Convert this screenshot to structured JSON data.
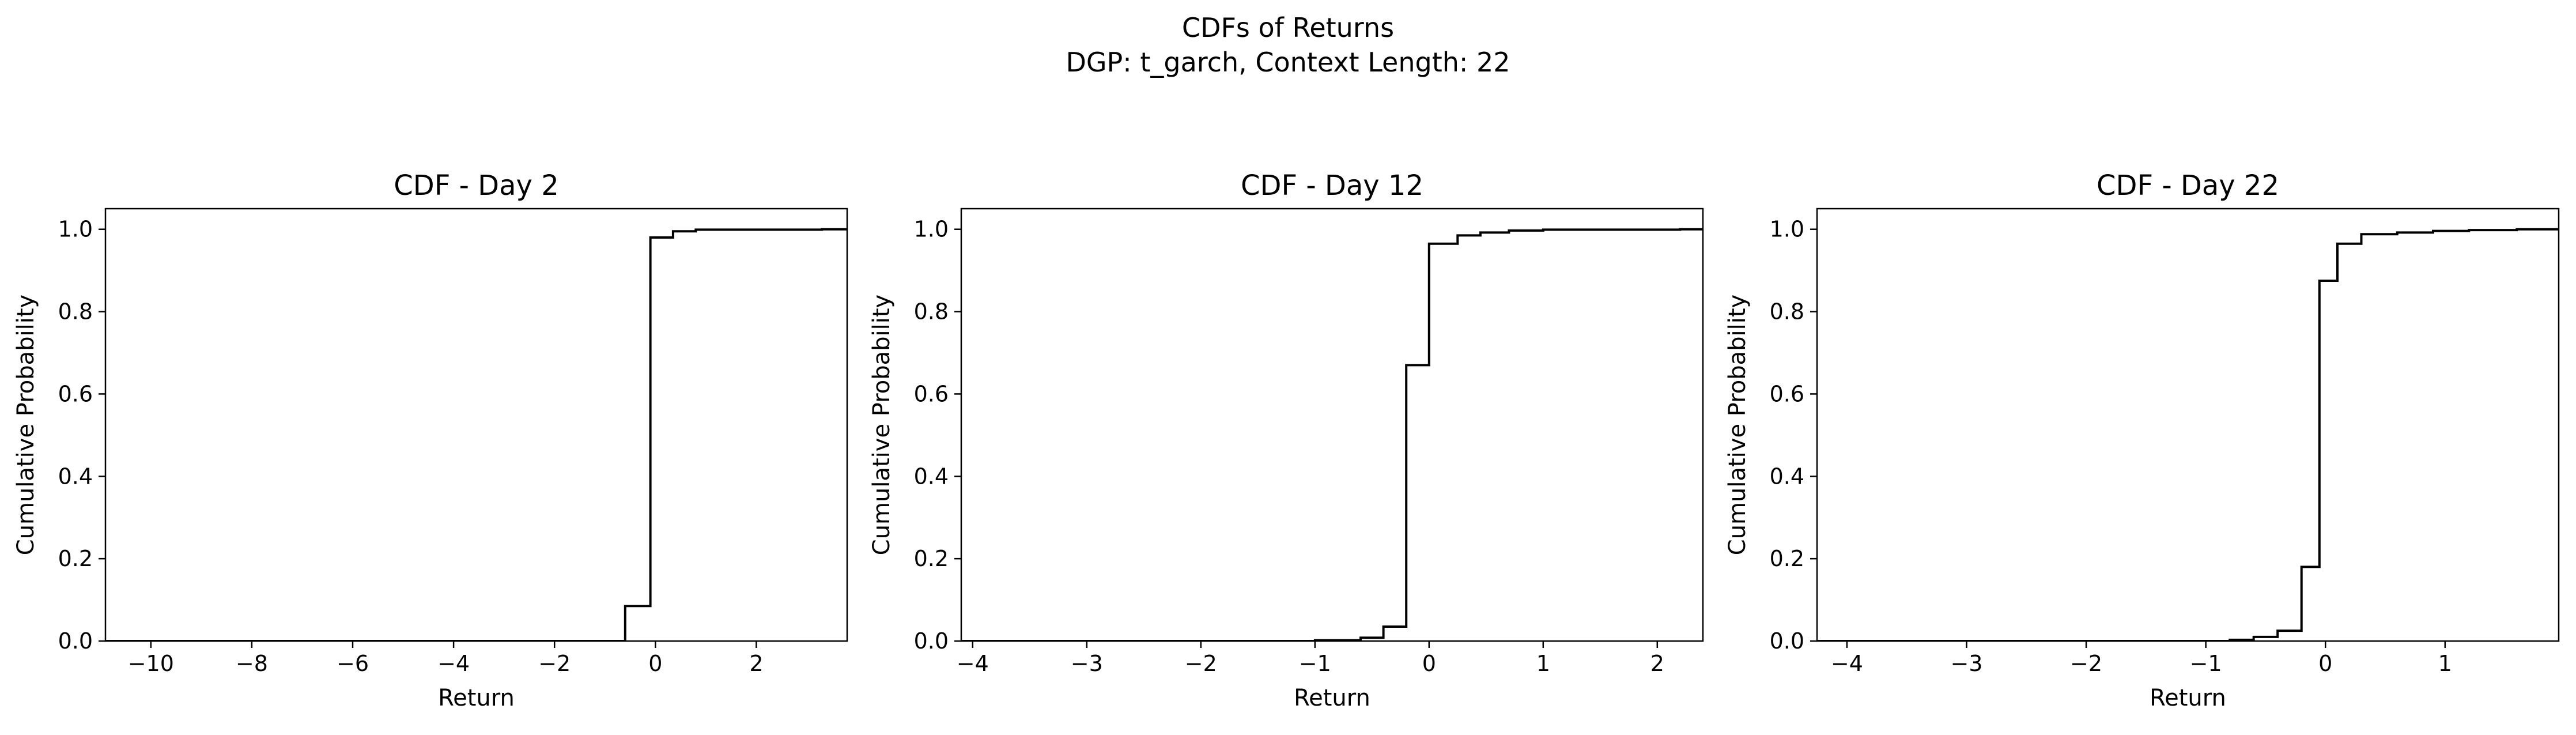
{
  "figure": {
    "title_line1": "CDFs of Returns",
    "title_line2": "DGP: t_garch, Context Length: 22"
  },
  "style": {
    "line_color": "#000000",
    "axis_color": "#000000",
    "background": "#ffffff"
  },
  "chart_data": [
    {
      "type": "line",
      "step": true,
      "title": "CDF - Day 2",
      "xlabel": "Return",
      "ylabel": "Cumulative Probability",
      "xlim": [
        -10.9,
        3.8
      ],
      "ylim": [
        0,
        1.05
      ],
      "xticks": [
        -10,
        -8,
        -6,
        -4,
        -2,
        0,
        2
      ],
      "yticks": [
        0.0,
        0.2,
        0.4,
        0.6,
        0.8,
        1.0
      ],
      "xtick_labels": [
        "−10",
        "−8",
        "−6",
        "−4",
        "−2",
        "0",
        "2"
      ],
      "ytick_labels": [
        "0.0",
        "0.2",
        "0.4",
        "0.6",
        "0.8",
        "1.0"
      ],
      "grid": false,
      "series": [
        {
          "x": [
            -10.9,
            -0.6,
            -0.6,
            -0.1,
            -0.1,
            0.35,
            0.35,
            0.8,
            0.8,
            3.3,
            3.3,
            3.8
          ],
          "y": [
            0.0,
            0.0,
            0.085,
            0.085,
            0.98,
            0.98,
            0.995,
            0.995,
            0.999,
            0.999,
            1.0,
            1.0
          ]
        }
      ]
    },
    {
      "type": "line",
      "step": true,
      "title": "CDF - Day 12",
      "xlabel": "Return",
      "ylabel": "Cumulative Probability",
      "xlim": [
        -4.1,
        2.4
      ],
      "ylim": [
        0,
        1.05
      ],
      "xticks": [
        -4,
        -3,
        -2,
        -1,
        0,
        1,
        2
      ],
      "yticks": [
        0.0,
        0.2,
        0.4,
        0.6,
        0.8,
        1.0
      ],
      "xtick_labels": [
        "−4",
        "−3",
        "−2",
        "−1",
        "0",
        "1",
        "2"
      ],
      "ytick_labels": [
        "0.0",
        "0.2",
        "0.4",
        "0.6",
        "0.8",
        "1.0"
      ],
      "grid": false,
      "series": [
        {
          "x": [
            -4.1,
            -1.0,
            -1.0,
            -0.6,
            -0.6,
            -0.4,
            -0.4,
            -0.2,
            -0.2,
            0.0,
            0.0,
            0.25,
            0.25,
            0.45,
            0.45,
            0.7,
            0.7,
            1.0,
            1.0,
            2.2,
            2.2,
            2.4
          ],
          "y": [
            0.0,
            0.0,
            0.002,
            0.002,
            0.008,
            0.008,
            0.035,
            0.035,
            0.67,
            0.67,
            0.965,
            0.965,
            0.985,
            0.985,
            0.992,
            0.992,
            0.997,
            0.997,
            0.999,
            0.999,
            1.0,
            1.0
          ]
        }
      ]
    },
    {
      "type": "line",
      "step": true,
      "title": "CDF - Day 22",
      "xlabel": "Return",
      "ylabel": "Cumulative Probability",
      "xlim": [
        -4.25,
        1.95
      ],
      "ylim": [
        0,
        1.05
      ],
      "xticks": [
        -4,
        -3,
        -2,
        -1,
        0,
        1
      ],
      "yticks": [
        0.0,
        0.2,
        0.4,
        0.6,
        0.8,
        1.0
      ],
      "xtick_labels": [
        "−4",
        "−3",
        "−2",
        "−1",
        "0",
        "1"
      ],
      "ytick_labels": [
        "0.0",
        "0.2",
        "0.4",
        "0.6",
        "0.8",
        "1.0"
      ],
      "grid": false,
      "series": [
        {
          "x": [
            -4.25,
            -0.8,
            -0.8,
            -0.6,
            -0.6,
            -0.4,
            -0.4,
            -0.2,
            -0.2,
            -0.05,
            -0.05,
            0.1,
            0.1,
            0.3,
            0.3,
            0.6,
            0.6,
            0.9,
            0.9,
            1.2,
            1.2,
            1.6,
            1.6,
            1.95
          ],
          "y": [
            0.0,
            0.0,
            0.003,
            0.003,
            0.01,
            0.01,
            0.025,
            0.025,
            0.18,
            0.18,
            0.875,
            0.875,
            0.965,
            0.965,
            0.988,
            0.988,
            0.992,
            0.992,
            0.996,
            0.996,
            0.998,
            0.998,
            1.0,
            1.0
          ]
        }
      ]
    }
  ]
}
